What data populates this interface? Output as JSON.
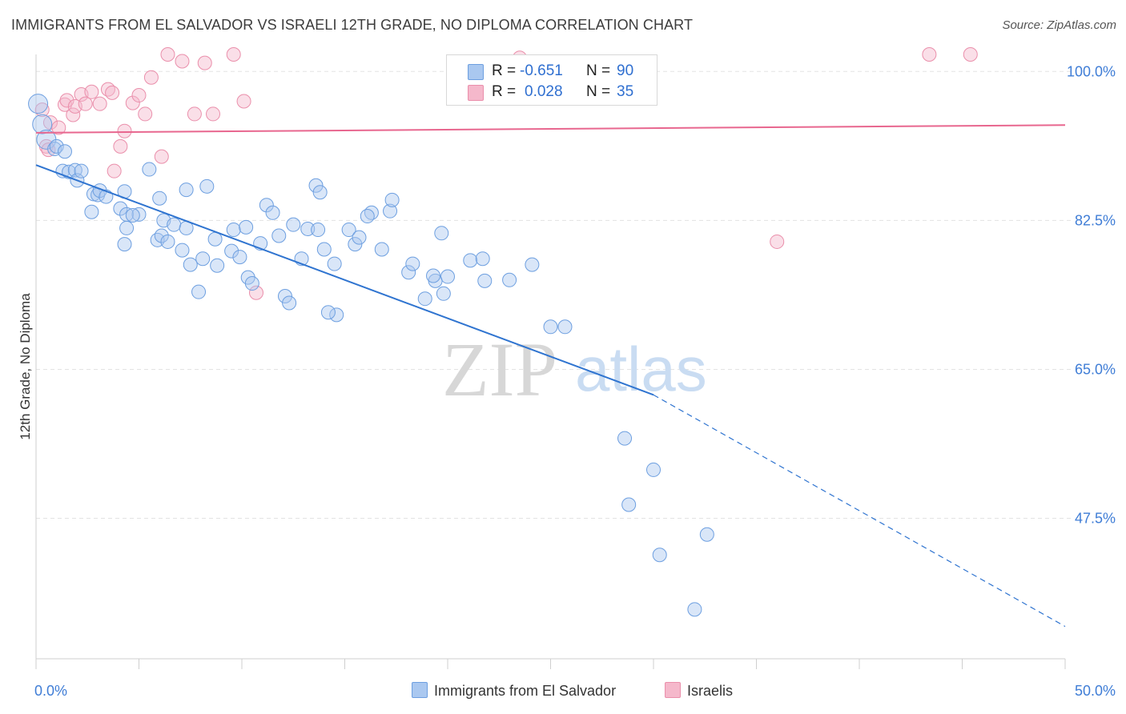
{
  "header": {
    "title": "IMMIGRANTS FROM EL SALVADOR VS ISRAELI 12TH GRADE, NO DIPLOMA CORRELATION CHART",
    "source": "Source: ZipAtlas.com"
  },
  "legend": {
    "rows": [
      {
        "r_label": "R =",
        "r_value": "-0.651",
        "n_label": "N =",
        "n_value": "90",
        "color": "#aac8f0"
      },
      {
        "r_label": "R =",
        "r_value": "0.028",
        "n_label": "N =",
        "n_value": "35",
        "color": "#f5b8cb"
      }
    ]
  },
  "bottom_legend": [
    {
      "label": "Immigrants from El Salvador",
      "color": "#aac8f0"
    },
    {
      "label": "Israelis",
      "color": "#f5b8cb"
    }
  ],
  "watermark": {
    "zip": "ZIP",
    "atlas": "atlas"
  },
  "chart_data": {
    "type": "scatter",
    "title": "IMMIGRANTS FROM EL SALVADOR VS ISRAELI 12TH GRADE, NO DIPLOMA CORRELATION CHART",
    "xlabel": "",
    "ylabel": "12th Grade, No Diploma",
    "xlim": [
      0,
      50
    ],
    "ylim": [
      31,
      102
    ],
    "x_tick_labels": [
      "0.0%",
      "50.0%"
    ],
    "y_ticks": [
      100.0,
      82.5,
      65.0,
      47.5
    ],
    "y_tick_labels": [
      "100.0%",
      "82.5%",
      "65.0%",
      "47.5%"
    ],
    "grid": true,
    "colors": {
      "blue_fill": "#aac8f0",
      "blue_stroke": "#6d9fe0",
      "blue_line": "#2f74d0",
      "pink_fill": "#f5b8cb",
      "pink_stroke": "#ea8fab",
      "pink_line": "#e8678f",
      "tick_label": "#3f7dd6"
    },
    "series": [
      {
        "name": "Immigrants from El Salvador",
        "color": "#aac8f0",
        "r": -0.651,
        "n": 90,
        "trend": {
          "x0": 0.0,
          "y0": 89.0,
          "x1": 30.0,
          "y1": 62.0,
          "dash_to_x": 50.0,
          "dash_to_y": 34.8
        },
        "points": [
          [
            0.1,
            96.2
          ],
          [
            0.3,
            93.8
          ],
          [
            0.5,
            92.0
          ],
          [
            0.9,
            90.9
          ],
          [
            1.0,
            91.2
          ],
          [
            1.4,
            90.6
          ],
          [
            1.3,
            88.3
          ],
          [
            1.6,
            88.2
          ],
          [
            1.9,
            88.4
          ],
          [
            2.0,
            87.2
          ],
          [
            2.2,
            88.3
          ],
          [
            2.8,
            85.6
          ],
          [
            3.0,
            85.5
          ],
          [
            3.1,
            86.0
          ],
          [
            2.7,
            83.5
          ],
          [
            3.4,
            85.3
          ],
          [
            4.1,
            83.9
          ],
          [
            4.4,
            81.6
          ],
          [
            4.3,
            85.9
          ],
          [
            4.4,
            83.2
          ],
          [
            4.3,
            79.7
          ],
          [
            5.0,
            83.2
          ],
          [
            5.5,
            88.5
          ],
          [
            4.7,
            83.1
          ],
          [
            6.0,
            85.1
          ],
          [
            5.9,
            80.2
          ],
          [
            6.1,
            80.7
          ],
          [
            6.4,
            80.0
          ],
          [
            6.2,
            82.5
          ],
          [
            6.7,
            82.0
          ],
          [
            7.3,
            86.1
          ],
          [
            7.1,
            79.0
          ],
          [
            7.3,
            81.6
          ],
          [
            7.9,
            74.1
          ],
          [
            7.5,
            77.3
          ],
          [
            8.1,
            78.0
          ],
          [
            8.3,
            86.5
          ],
          [
            8.7,
            80.3
          ],
          [
            8.8,
            77.2
          ],
          [
            9.5,
            78.9
          ],
          [
            9.6,
            81.4
          ],
          [
            9.9,
            78.2
          ],
          [
            10.2,
            81.7
          ],
          [
            10.3,
            75.8
          ],
          [
            10.5,
            75.1
          ],
          [
            10.9,
            79.8
          ],
          [
            11.2,
            84.3
          ],
          [
            11.5,
            83.4
          ],
          [
            11.8,
            80.7
          ],
          [
            12.1,
            73.6
          ],
          [
            12.3,
            72.8
          ],
          [
            12.5,
            82.0
          ],
          [
            12.9,
            78.0
          ],
          [
            13.2,
            81.5
          ],
          [
            13.6,
            86.6
          ],
          [
            13.8,
            85.8
          ],
          [
            13.7,
            81.4
          ],
          [
            14.0,
            79.1
          ],
          [
            14.5,
            77.4
          ],
          [
            14.6,
            71.4
          ],
          [
            14.2,
            71.7
          ],
          [
            15.2,
            81.4
          ],
          [
            15.5,
            79.7
          ],
          [
            15.7,
            80.5
          ],
          [
            16.3,
            83.4
          ],
          [
            16.1,
            83.0
          ],
          [
            16.8,
            79.1
          ],
          [
            17.2,
            83.6
          ],
          [
            17.3,
            84.9
          ],
          [
            18.1,
            76.4
          ],
          [
            18.3,
            77.4
          ],
          [
            18.9,
            73.3
          ],
          [
            19.4,
            75.4
          ],
          [
            19.7,
            81.0
          ],
          [
            19.8,
            73.9
          ],
          [
            19.3,
            76.0
          ],
          [
            20.0,
            75.9
          ],
          [
            21.1,
            77.8
          ],
          [
            21.7,
            78.0
          ],
          [
            21.8,
            75.4
          ],
          [
            23.0,
            75.5
          ],
          [
            24.1,
            77.3
          ],
          [
            25.0,
            70.0
          ],
          [
            25.7,
            70.0
          ],
          [
            28.6,
            56.9
          ],
          [
            30.0,
            53.2
          ],
          [
            32.0,
            36.8
          ],
          [
            32.6,
            45.6
          ],
          [
            30.3,
            43.2
          ],
          [
            28.8,
            49.1
          ]
        ]
      },
      {
        "name": "Israelis",
        "color": "#f5b8cb",
        "r": 0.028,
        "n": 35,
        "trend": {
          "x0": 0.0,
          "y0": 92.8,
          "x1": 50.0,
          "y1": 93.7
        },
        "points": [
          [
            0.3,
            95.5
          ],
          [
            0.5,
            91.2
          ],
          [
            0.6,
            90.8
          ],
          [
            0.7,
            94.0
          ],
          [
            1.1,
            93.4
          ],
          [
            1.4,
            96.1
          ],
          [
            1.5,
            96.6
          ],
          [
            1.8,
            94.9
          ],
          [
            1.9,
            95.9
          ],
          [
            2.2,
            97.3
          ],
          [
            2.4,
            96.2
          ],
          [
            2.7,
            97.6
          ],
          [
            3.1,
            96.2
          ],
          [
            3.5,
            97.9
          ],
          [
            3.7,
            97.5
          ],
          [
            4.1,
            91.2
          ],
          [
            3.8,
            88.3
          ],
          [
            4.3,
            93.0
          ],
          [
            4.7,
            96.3
          ],
          [
            5.0,
            97.2
          ],
          [
            5.3,
            95.0
          ],
          [
            5.6,
            99.3
          ],
          [
            6.1,
            90.0
          ],
          [
            6.4,
            102.0
          ],
          [
            7.1,
            101.2
          ],
          [
            7.7,
            95.0
          ],
          [
            8.2,
            101.0
          ],
          [
            8.6,
            95.0
          ],
          [
            9.6,
            102.0
          ],
          [
            10.1,
            96.5
          ],
          [
            10.7,
            74.0
          ],
          [
            23.5,
            101.6
          ],
          [
            36.0,
            80.0
          ],
          [
            43.4,
            102.0
          ],
          [
            45.4,
            102.0
          ]
        ]
      }
    ]
  }
}
